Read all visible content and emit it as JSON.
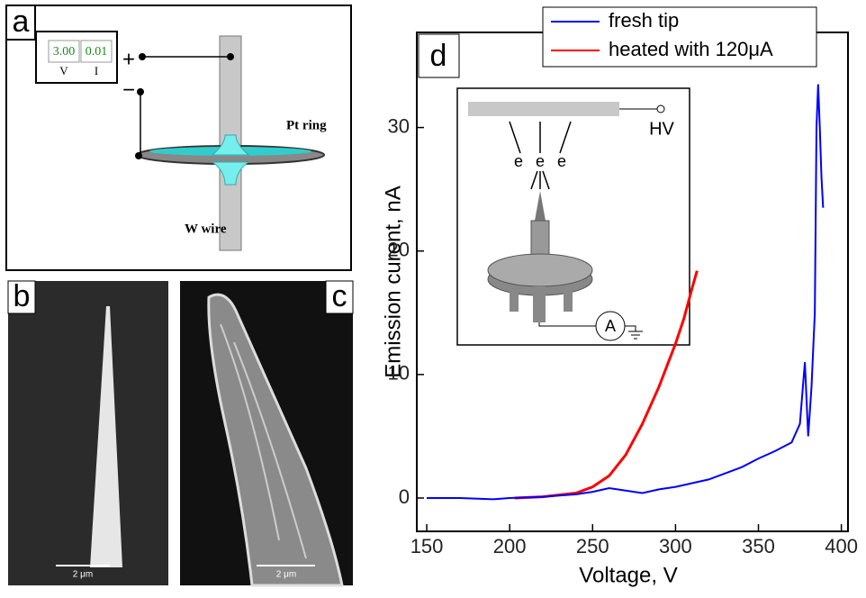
{
  "panels": {
    "a": {
      "label": "a",
      "meter_values": [
        "3.00",
        "0.01"
      ],
      "meter_units": [
        "V",
        "I"
      ],
      "plus": "+",
      "minus": "−",
      "ring_label": "Pt ring",
      "wire_label": "W wire"
    },
    "b": {
      "label": "b",
      "scale_bar": "2 μm"
    },
    "c": {
      "label": "c",
      "scale_bar": "2 μm"
    },
    "d": {
      "label": "d",
      "inset": {
        "hv": "HV",
        "electrons": [
          "e",
          "e",
          "e"
        ],
        "meter": "A"
      }
    }
  },
  "chart_data": {
    "type": "line",
    "x_label": "Voltage, V",
    "y_label": "Emission curent, nA",
    "xlim": [
      144,
      404
    ],
    "ylim": [
      -2.7,
      37.7
    ],
    "xticks": [
      150,
      200,
      250,
      300,
      350,
      400
    ],
    "yticks": [
      0,
      10,
      20,
      30
    ],
    "series": [
      {
        "name": "fresh tip",
        "color": "#0000ff",
        "x": [
          150,
          170,
          190,
          200,
          220,
          240,
          250,
          260,
          270,
          280,
          290,
          300,
          310,
          320,
          330,
          340,
          350,
          360,
          370,
          375,
          378,
          380,
          382,
          384,
          385,
          386,
          387,
          388,
          389
        ],
        "values": [
          0,
          0,
          -0.1,
          0,
          0.1,
          0.3,
          0.5,
          0.8,
          0.6,
          0.4,
          0.7,
          0.9,
          1.2,
          1.5,
          2,
          2.5,
          3.2,
          3.8,
          4.5,
          6,
          11,
          5,
          9,
          15,
          30,
          33.5,
          30,
          26,
          23.5
        ]
      },
      {
        "name": "heated with 120μA",
        "color": "#ff0000",
        "x": [
          203,
          220,
          240,
          250,
          260,
          270,
          280,
          290,
          300,
          305,
          310,
          313
        ],
        "values": [
          0,
          0.1,
          0.4,
          0.9,
          1.8,
          3.5,
          6,
          9,
          12.5,
          14.5,
          17,
          18.4
        ]
      }
    ]
  }
}
